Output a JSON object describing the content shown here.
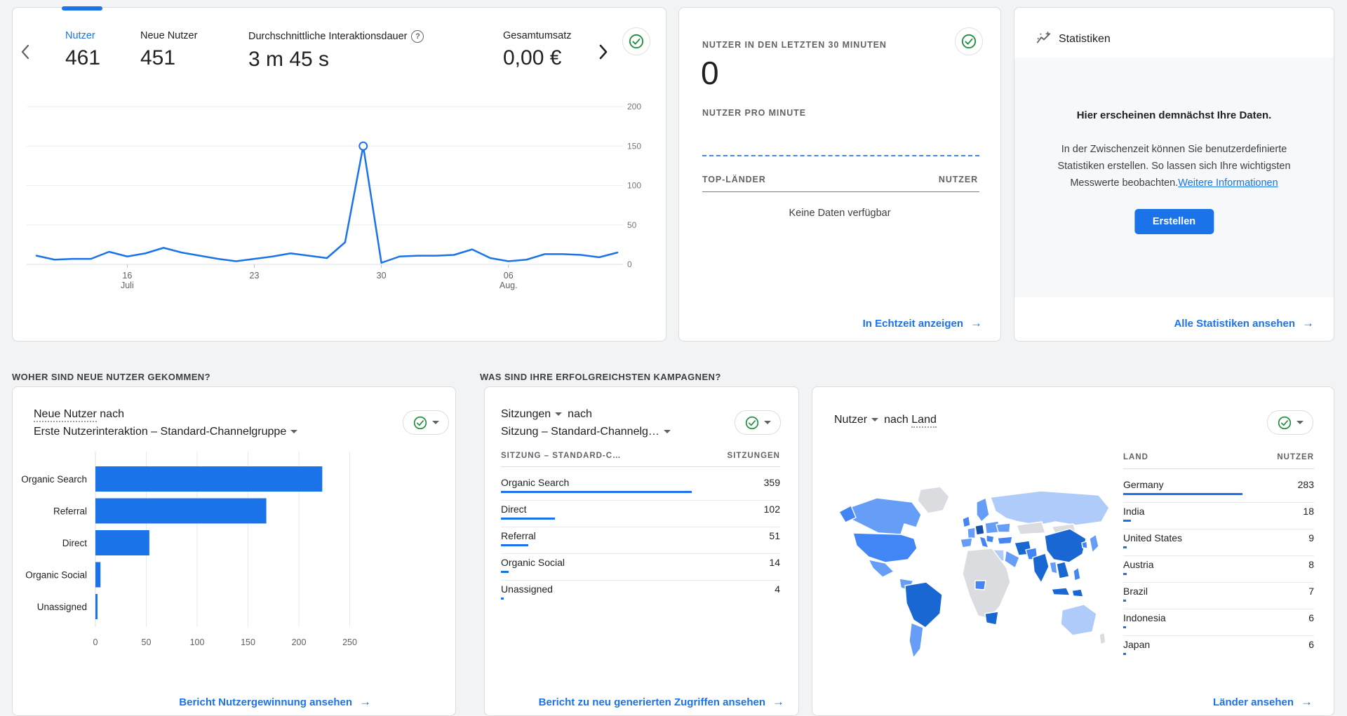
{
  "colors": {
    "accent_blue": "#1a73e8",
    "line_blue": "#1a73e8",
    "bar_blue": "#1a73e8",
    "check_green": "#1e8e3e",
    "dashed_blue": "#4285f4",
    "map_palette": {
      "none": "#dadce0",
      "low": "#aecbfa",
      "mid": "#669df6",
      "high": "#4285f4",
      "max": "#1967d2",
      "top": "#174ea6"
    }
  },
  "icons": {
    "help_glyph": "?"
  },
  "overview_card": {
    "tabs": [
      {
        "label": "Nutzer",
        "value": "461",
        "active": true,
        "help": false
      },
      {
        "label": "Neue Nutzer",
        "value": "451",
        "active": false,
        "help": false
      },
      {
        "label": "Durchschnittliche Interaktionsdauer",
        "value": "3 m 45 s",
        "active": false,
        "help": true
      },
      {
        "label": "Gesamtumsatz",
        "value": "0,00 €",
        "active": false,
        "help": false
      }
    ]
  },
  "realtime_card": {
    "title": "NUTZER IN DEN LETZTEN 30 MINUTEN",
    "value": "0",
    "per_minute_label": "NUTZER PRO MINUTE",
    "top_countries_label": "TOP-LÄNDER",
    "users_col_label": "NUTZER",
    "no_data_text": "Keine Daten verfügbar",
    "footer_link": "In Echtzeit anzeigen",
    "arrow": "→"
  },
  "insights_card": {
    "title": "Statistiken",
    "heading": "Hier erscheinen demnächst Ihre Daten.",
    "body_line1": "In der Zwischenzeit können Sie benutzerdefinierte",
    "body_line2": "Statistiken erstellen. So lassen sich Ihre wichtigsten",
    "body_line3": "Messwerte beobachten.",
    "inline_link": "Weitere Informationen",
    "button_label": "Erstellen",
    "footer_link": "Alle Statistiken ansehen",
    "arrow": "→"
  },
  "acquisition_section": {
    "title": "WOHER SIND NEUE NUTZER GEKOMMEN?",
    "metric": "Neue Nutzer",
    "joiner": " nach",
    "dimension": "Erste Nutzerinteraktion – Standard-Channelgruppe",
    "footer_link": "Bericht Nutzergewinnung ansehen",
    "arrow": "→"
  },
  "campaigns_section": {
    "title": "WAS SIND IHRE ERFOLGREICHSTEN KAMPAGNEN?",
    "metric": "Sitzungen",
    "joiner": "nach",
    "dimension": "Sitzung – Standard-Channelg…",
    "col1": "SITZUNG – STANDARD-C…",
    "col2": "SITZUNGEN",
    "footer_link": "Bericht zu neu generierten Zugriffen ansehen",
    "arrow": "→"
  },
  "countries_card": {
    "metric": "Nutzer",
    "joiner": "nach",
    "dimension": "Land",
    "col1": "LAND",
    "col2": "NUTZER",
    "footer_link": "Länder ansehen",
    "arrow": "→"
  },
  "chart_data": [
    {
      "id": "users_over_time",
      "type": "line",
      "title": "Nutzer",
      "x": [
        "11. Juli",
        "12. Juli",
        "13. Juli",
        "14. Juli",
        "15. Juli",
        "16. Juli",
        "17. Juli",
        "18. Juli",
        "19. Juli",
        "20. Juli",
        "21. Juli",
        "22. Juli",
        "23. Juli",
        "24. Juli",
        "25. Juli",
        "26. Juli",
        "27. Juli",
        "28. Juli",
        "29. Juli",
        "30. Juli",
        "31. Juli",
        "1. Aug.",
        "2. Aug.",
        "3. Aug.",
        "4. Aug.",
        "5. Aug.",
        "6. Aug.",
        "7. Aug.",
        "8. Aug.",
        "9. Aug.",
        "10. Aug.",
        "11. Aug.",
        "12. Aug."
      ],
      "values": [
        11,
        6,
        7,
        7,
        16,
        10,
        14,
        21,
        15,
        11,
        7,
        4,
        7,
        10,
        14,
        11,
        8,
        28,
        150,
        2,
        10,
        11,
        11,
        12,
        19,
        8,
        4,
        6,
        13,
        13,
        12,
        9,
        15
      ],
      "peak": {
        "x": "29. Juli",
        "value": 150
      },
      "ylim": [
        0,
        200
      ],
      "yticks": [
        0,
        50,
        100,
        150,
        200
      ],
      "x_ticks": [
        {
          "index": 5,
          "line1": "16",
          "line2": "Juli"
        },
        {
          "index": 12,
          "line1": "23",
          "line2": ""
        },
        {
          "index": 19,
          "line1": "30",
          "line2": ""
        },
        {
          "index": 26,
          "line1": "06",
          "line2": "Aug."
        }
      ],
      "grid": true,
      "legend": "none"
    },
    {
      "id": "new_users_by_channel",
      "type": "bar",
      "orientation": "horizontal",
      "title": "Neue Nutzer nach Erste Nutzerinteraktion – Standard-Channelgruppe",
      "categories": [
        "Organic Search",
        "Referral",
        "Direct",
        "Organic Social",
        "Unassigned"
      ],
      "values": [
        223,
        168,
        53,
        5,
        2
      ],
      "xlim": [
        0,
        250
      ],
      "xticks": [
        0,
        50,
        100,
        150,
        200,
        250
      ],
      "grid": true
    },
    {
      "id": "sessions_by_channel",
      "type": "table",
      "title": "Sitzungen nach Sitzung – Standard-Channelgruppe",
      "columns": [
        "SITZUNG – STANDARD-C…",
        "SITZUNGEN"
      ],
      "rows": [
        {
          "name": "Organic Search",
          "value": 359
        },
        {
          "name": "Direct",
          "value": 102
        },
        {
          "name": "Referral",
          "value": 51
        },
        {
          "name": "Organic Social",
          "value": 14
        },
        {
          "name": "Unassigned",
          "value": 4
        }
      ],
      "max_value": 359
    },
    {
      "id": "users_by_country",
      "type": "table",
      "title": "Nutzer nach Land",
      "columns": [
        "LAND",
        "NUTZER"
      ],
      "rows": [
        {
          "name": "Germany",
          "value": 283
        },
        {
          "name": "India",
          "value": 18
        },
        {
          "name": "United States",
          "value": 9
        },
        {
          "name": "Austria",
          "value": 8
        },
        {
          "name": "Brazil",
          "value": 7
        },
        {
          "name": "Indonesia",
          "value": 6
        },
        {
          "name": "Japan",
          "value": 6
        }
      ],
      "max_value": 283
    }
  ]
}
